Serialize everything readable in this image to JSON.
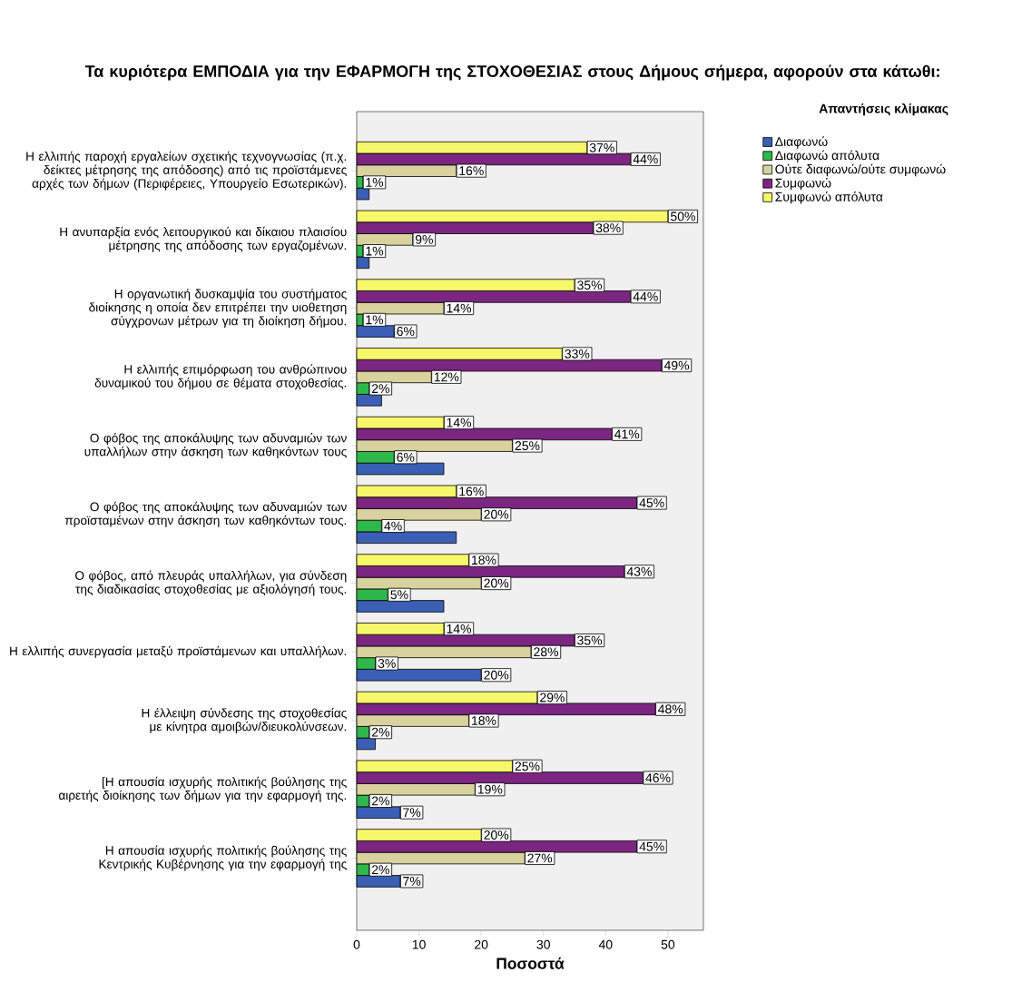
{
  "chart_data": {
    "type": "bar",
    "orientation": "horizontal",
    "title": "Τα κυριότερα ΕΜΠΟΔΙΑ για την ΕΦΑΡΜΟΓΗ της ΣΤΟΧΟΘΕΣΙΑΣ στους Δήμους σήμερα, αφορούν στα κάτωθι:",
    "xlabel": "Ποσοστά",
    "legend_title": "Απαντήσεις κλίμακας",
    "legend": "top right",
    "categories": [
      "Η ελλιπής παροχή εργαλείων σχετικής τεχνογνωσίας (π.χ. δείκτες μέτρησης της απόδοσης) από τις προϊστάμενες αρχές των δήμων (Περιφέρειες, Υπουργείο Εσωτερικών).",
      "Η ανυπαρξία ενός λειτουργικού και δίκαιου πλαισίου μέτρησης της απόδοσης των εργαζομένων.",
      "Η οργανωτική δυσκαμψία του συστήματος διοίκησης η οποία δεν επιτρέπει την υιοθετηση σύγχρονων μέτρων για τη διοίκηση δήμου.",
      "Η ελλιπής επιμόρφωση του ανθρώπινου δυναμικού του δήμου σε θέματα στοχοθεσίας.",
      "Ο φόβος της αποκάλυψης των αδυναμιών των υπαλλήλων στην άσκηση των καθηκόντων τους",
      "Ο φόβος της αποκάλυψης των αδυναμιών των προϊσταμένων στην άσκηση των καθηκόντων τους.",
      "Ο φόβος, από πλευράς υπαλλήλων, για σύνδεση της διαδικασίας στοχοθεσίας με αξιολόγησή τους.",
      "Η ελλιπής συνεργασία μεταξύ προϊστάμενων και υπαλλήλων.",
      "Η έλλειψη σύνδεσης της στοχοθεσίας με κίνητρα αμοιβών/διευκολύνσεων.",
      "[Η απουσία ισχυρής πολιτικής βούλησης της αιρετής διοίκησης των δήμων για την εφαρμογή της.",
      "Η απουσία ισχυρής πολιτικής βούλησης της Κεντρικής Κυβέρνησης για την εφαρμογή της"
    ],
    "xlim": [
      0,
      55.7
    ],
    "xticks": [
      0,
      10,
      20,
      30,
      40,
      50
    ],
    "series": [
      {
        "name": "Διαφωνώ",
        "color": "#3a5fb5",
        "values": [
          2,
          2,
          6,
          4,
          14,
          16,
          14,
          20,
          3,
          7,
          7
        ],
        "value_labels": [
          null,
          null,
          "6%",
          null,
          null,
          null,
          null,
          "20%",
          null,
          "7%",
          "7%"
        ]
      },
      {
        "name": "Διαφωνώ απόλυτα",
        "color": "#2eb84a",
        "values": [
          1,
          1,
          1,
          2,
          6,
          4,
          5,
          3,
          2,
          2,
          2
        ],
        "value_labels": [
          "1%",
          "1%",
          "1%",
          "2%",
          "6%",
          "4%",
          "5%",
          "3%",
          "2%",
          "2%",
          "2%"
        ]
      },
      {
        "name": "Ούτε διαφωνώ/ούτε συμφωνώ",
        "color": "#d8d29e",
        "values": [
          16,
          9,
          14,
          12,
          25,
          20,
          20,
          28,
          18,
          19,
          27
        ],
        "value_labels": [
          "16%",
          "9%",
          "14%",
          "12%",
          "25%",
          "20%",
          "20%",
          "28%",
          "18%",
          "19%",
          "27%"
        ]
      },
      {
        "name": "Συμφωνώ",
        "color": "#7b2680",
        "values": [
          44,
          38,
          44,
          49,
          41,
          45,
          43,
          35,
          48,
          46,
          45
        ],
        "value_labels": [
          "44%",
          "38%",
          "44%",
          "49%",
          "41%",
          "45%",
          "43%",
          "35%",
          "48%",
          "46%",
          "45%"
        ]
      },
      {
        "name": "Συμφωνώ απόλυτα",
        "color": "#f7f76a",
        "values": [
          37,
          50,
          35,
          33,
          14,
          16,
          18,
          14,
          29,
          25,
          20
        ],
        "value_labels": [
          "37%",
          "50%",
          "35%",
          "33%",
          "14%",
          "16%",
          "18%",
          "14%",
          "29%",
          "25%",
          "20%"
        ]
      }
    ]
  }
}
